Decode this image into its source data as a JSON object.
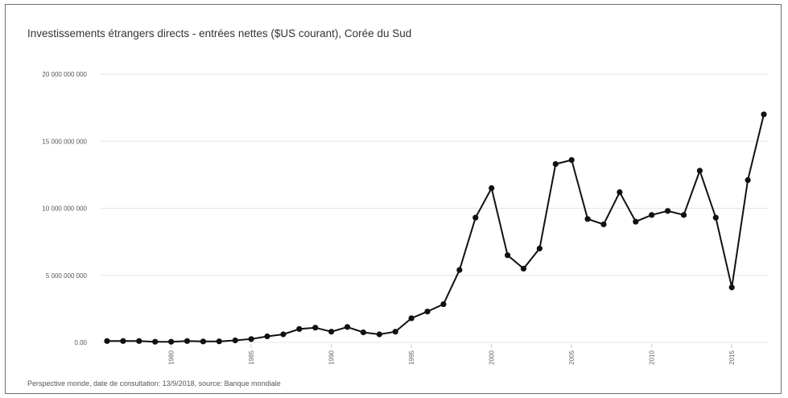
{
  "chart_data": {
    "type": "line",
    "title": "Investissements étrangers directs - entrées nettes ($US courant), Corée du Sud",
    "xlabel": "",
    "ylabel": "",
    "xlim": [
      1976,
      2017
    ],
    "ylim": [
      0,
      20000000000
    ],
    "grid": true,
    "y_ticks": [
      {
        "value": 0,
        "label": "0.00"
      },
      {
        "value": 5000000000,
        "label": "5 000 000 000"
      },
      {
        "value": 10000000000,
        "label": "10 000 000 000"
      },
      {
        "value": 15000000000,
        "label": "15 000 000 000"
      },
      {
        "value": 20000000000,
        "label": "20 000 000 000"
      }
    ],
    "x_ticks": [
      1980,
      1985,
      1990,
      1995,
      2000,
      2005,
      2010,
      2015
    ],
    "series": [
      {
        "x": [
          1976,
          1977,
          1978,
          1979,
          1980,
          1981,
          1982,
          1983,
          1984,
          1985,
          1986,
          1987,
          1988,
          1989,
          1990,
          1991,
          1992,
          1993,
          1994,
          1995,
          1996,
          1997,
          1998,
          1999,
          2000,
          2001,
          2002,
          2003,
          2004,
          2005,
          2006,
          2007,
          2008,
          2009,
          2010,
          2011,
          2012,
          2013,
          2014,
          2015,
          2016,
          2017
        ],
        "values": [
          100000000,
          100000000,
          100000000,
          50000000,
          50000000,
          100000000,
          70000000,
          80000000,
          150000000,
          250000000,
          450000000,
          600000000,
          1000000000,
          1100000000,
          800000000,
          1150000000,
          750000000,
          600000000,
          800000000,
          1800000000,
          2300000000,
          2850000000,
          5400000000,
          9300000000,
          11500000000,
          6500000000,
          5500000000,
          7000000000,
          13300000000,
          13600000000,
          9200000000,
          8800000000,
          11200000000,
          9000000000,
          9500000000,
          9800000000,
          9500000000,
          12800000000,
          9300000000,
          4100000000,
          12100000000,
          17000000000
        ],
        "color": "#111111"
      }
    ]
  },
  "footer": {
    "source": "Perspective monde, date de consultation: 13/9/2018, source: Banque mondiale"
  }
}
